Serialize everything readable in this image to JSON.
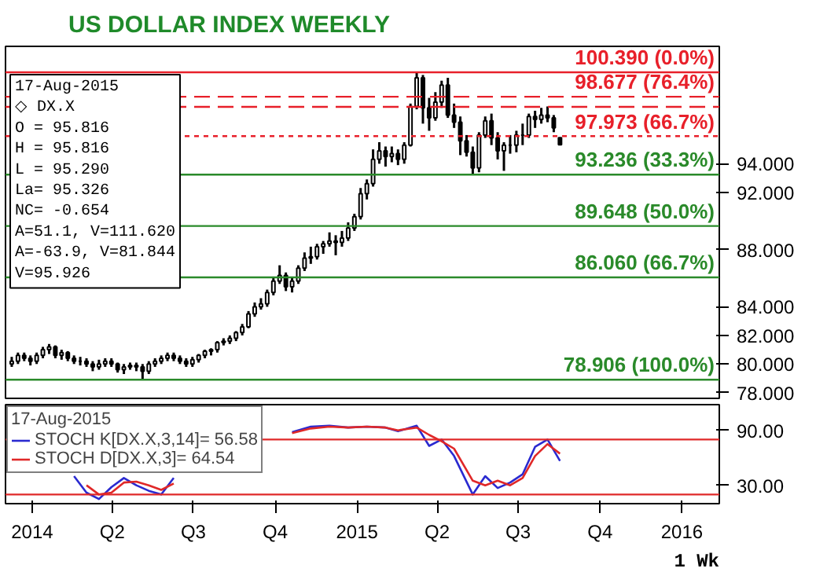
{
  "chart_data": [
    {
      "type": "candlestick",
      "title": "US DOLLAR INDEX WEEKLY",
      "x": [
        "2013-12-09",
        "2013-12-16",
        "2013-12-23",
        "2013-12-30",
        "2014-01-06",
        "2014-01-13",
        "2014-01-20",
        "2014-01-27",
        "2014-02-03",
        "2014-02-10",
        "2014-02-17",
        "2014-02-24",
        "2014-03-03",
        "2014-03-10",
        "2014-03-17",
        "2014-03-24",
        "2014-03-31",
        "2014-04-07",
        "2014-04-14",
        "2014-04-21",
        "2014-04-28",
        "2014-05-05",
        "2014-05-12",
        "2014-05-19",
        "2014-05-26",
        "2014-06-02",
        "2014-06-09",
        "2014-06-16",
        "2014-06-23",
        "2014-06-30",
        "2014-07-07",
        "2014-07-14",
        "2014-07-21",
        "2014-07-28",
        "2014-08-04",
        "2014-08-11",
        "2014-08-18",
        "2014-08-25",
        "2014-09-01",
        "2014-09-08",
        "2014-09-15",
        "2014-09-22",
        "2014-09-29",
        "2014-10-06",
        "2014-10-13",
        "2014-10-20",
        "2014-10-27",
        "2014-11-03",
        "2014-11-10",
        "2014-11-17",
        "2014-11-24",
        "2014-12-01",
        "2014-12-08",
        "2014-12-15",
        "2014-12-22",
        "2014-12-29",
        "2015-01-05",
        "2015-01-12",
        "2015-01-19",
        "2015-01-26",
        "2015-02-02",
        "2015-02-09",
        "2015-02-16",
        "2015-02-23",
        "2015-03-02",
        "2015-03-09",
        "2015-03-16",
        "2015-03-23",
        "2015-03-30",
        "2015-04-06",
        "2015-04-13",
        "2015-04-20",
        "2015-04-27",
        "2015-05-04",
        "2015-05-11",
        "2015-05-18",
        "2015-05-25",
        "2015-06-01",
        "2015-06-08",
        "2015-06-15",
        "2015-06-22",
        "2015-06-29",
        "2015-07-06",
        "2015-07-13",
        "2015-07-20",
        "2015-07-27",
        "2015-08-03",
        "2015-08-10",
        "2015-08-17"
      ],
      "ohlc": [
        [
          80.0,
          80.5,
          79.8,
          80.2
        ],
        [
          80.2,
          80.8,
          80.0,
          80.6
        ],
        [
          80.6,
          80.8,
          80.2,
          80.4
        ],
        [
          80.4,
          80.6,
          79.9,
          80.2
        ],
        [
          80.2,
          80.8,
          80.0,
          80.6
        ],
        [
          80.6,
          81.2,
          80.4,
          81.0
        ],
        [
          81.0,
          81.4,
          80.7,
          81.2
        ],
        [
          81.2,
          81.3,
          80.4,
          80.6
        ],
        [
          80.6,
          81.0,
          80.3,
          80.8
        ],
        [
          80.8,
          80.9,
          80.2,
          80.4
        ],
        [
          80.4,
          80.6,
          80.0,
          80.2
        ],
        [
          80.2,
          80.5,
          79.9,
          80.2
        ],
        [
          80.2,
          80.4,
          79.8,
          80.0
        ],
        [
          80.0,
          80.2,
          79.5,
          79.8
        ],
        [
          79.8,
          80.3,
          79.6,
          80.0
        ],
        [
          80.0,
          80.4,
          79.8,
          80.2
        ],
        [
          80.2,
          80.4,
          79.8,
          80.0
        ],
        [
          80.0,
          80.1,
          79.4,
          79.6
        ],
        [
          79.6,
          80.0,
          79.3,
          79.8
        ],
        [
          79.8,
          80.1,
          79.6,
          79.9
        ],
        [
          79.9,
          80.1,
          79.5,
          79.8
        ],
        [
          79.8,
          80.0,
          78.906,
          79.5
        ],
        [
          79.5,
          80.2,
          79.3,
          80.0
        ],
        [
          80.0,
          80.4,
          79.8,
          80.2
        ],
        [
          80.2,
          80.6,
          80.0,
          80.4
        ],
        [
          80.4,
          80.8,
          80.2,
          80.6
        ],
        [
          80.6,
          80.8,
          80.2,
          80.4
        ],
        [
          80.4,
          80.6,
          80.0,
          80.2
        ],
        [
          80.2,
          80.4,
          79.8,
          80.0
        ],
        [
          80.0,
          80.5,
          79.8,
          80.3
        ],
        [
          80.3,
          80.7,
          80.1,
          80.6
        ],
        [
          80.6,
          81.0,
          80.4,
          80.9
        ],
        [
          80.9,
          81.1,
          80.6,
          81.0
        ],
        [
          81.0,
          81.6,
          80.8,
          81.5
        ],
        [
          81.5,
          81.8,
          81.3,
          81.6
        ],
        [
          81.6,
          82.0,
          81.4,
          81.8
        ],
        [
          81.8,
          82.3,
          81.6,
          82.2
        ],
        [
          82.2,
          82.8,
          82.0,
          82.6
        ],
        [
          82.6,
          83.7,
          82.5,
          83.5
        ],
        [
          83.5,
          84.3,
          83.3,
          84.0
        ],
        [
          84.0,
          84.6,
          83.8,
          84.2
        ],
        [
          84.2,
          85.2,
          84.0,
          85.0
        ],
        [
          85.0,
          86.0,
          84.8,
          85.8
        ],
        [
          85.8,
          86.9,
          85.6,
          86.2
        ],
        [
          86.2,
          86.4,
          85.1,
          85.4
        ],
        [
          85.4,
          86.0,
          85.0,
          85.8
        ],
        [
          85.8,
          86.9,
          85.6,
          86.7
        ],
        [
          86.7,
          87.8,
          86.5,
          87.4
        ],
        [
          87.4,
          88.2,
          87.0,
          87.5
        ],
        [
          87.5,
          88.4,
          87.3,
          88.2
        ],
        [
          88.2,
          88.6,
          87.7,
          88.4
        ],
        [
          88.4,
          89.2,
          88.2,
          88.6
        ],
        [
          88.6,
          89.0,
          87.6,
          88.5
        ],
        [
          88.5,
          89.3,
          88.2,
          88.8
        ],
        [
          88.8,
          89.9,
          88.6,
          89.5
        ],
        [
          89.5,
          90.5,
          89.3,
          90.3
        ],
        [
          90.3,
          92.3,
          90.1,
          91.9
        ],
        [
          91.9,
          92.9,
          91.5,
          92.6
        ],
        [
          92.6,
          95.0,
          92.4,
          94.3
        ],
        [
          94.3,
          95.5,
          94.0,
          94.9
        ],
        [
          94.9,
          95.2,
          93.8,
          94.5
        ],
        [
          94.5,
          95.2,
          94.1,
          94.7
        ],
        [
          94.7,
          95.0,
          93.9,
          94.3
        ],
        [
          94.3,
          95.5,
          94.0,
          95.3
        ],
        [
          95.3,
          98.2,
          95.2,
          98.0
        ],
        [
          98.0,
          100.39,
          97.8,
          100.0
        ],
        [
          100.0,
          100.2,
          96.8,
          97.9
        ],
        [
          97.9,
          98.6,
          96.3,
          97.2
        ],
        [
          97.2,
          99.0,
          97.0,
          98.3
        ],
        [
          98.3,
          99.8,
          97.9,
          99.5
        ],
        [
          99.5,
          100.0,
          97.2,
          97.4
        ],
        [
          97.4,
          98.2,
          96.5,
          96.9
        ],
        [
          96.9,
          97.3,
          94.6,
          95.6
        ],
        [
          95.6,
          96.0,
          94.5,
          94.8
        ],
        [
          94.8,
          95.2,
          93.236,
          93.7
        ],
        [
          93.7,
          96.2,
          93.4,
          96.0
        ],
        [
          96.0,
          97.3,
          95.8,
          97.0
        ],
        [
          97.0,
          97.5,
          95.3,
          95.8
        ],
        [
          95.8,
          96.2,
          94.3,
          94.9
        ],
        [
          94.9,
          95.5,
          93.5,
          95.3
        ],
        [
          95.3,
          96.0,
          94.7,
          95.3
        ],
        [
          95.3,
          96.3,
          94.8,
          96.0
        ],
        [
          96.0,
          96.8,
          95.3,
          96.0
        ],
        [
          96.0,
          97.5,
          95.8,
          97.3
        ],
        [
          97.3,
          97.7,
          96.5,
          97.1
        ],
        [
          97.1,
          97.9,
          96.8,
          97.4
        ],
        [
          97.4,
          98.0,
          96.9,
          97.2
        ],
        [
          97.2,
          97.4,
          96.2,
          96.5
        ],
        [
          95.816,
          95.816,
          95.29,
          95.326
        ]
      ],
      "xlim": [
        "2013-12-02",
        "2016-02-12"
      ],
      "ylim": [
        77.6,
        102.2
      ],
      "yticks": [
        {
          "value": 78,
          "label": "78.000"
        },
        {
          "value": 80,
          "label": "80.000"
        },
        {
          "value": 82,
          "label": "82.000"
        },
        {
          "value": 84,
          "label": "84.000"
        },
        {
          "value": 88,
          "label": "88.000"
        },
        {
          "value": 92,
          "label": "92.000"
        },
        {
          "value": 94,
          "label": "94.000"
        }
      ],
      "tick_labels": "y",
      "grid": false,
      "ref_lines": [
        {
          "axis": "y",
          "value": 100.39,
          "label": "100.390 (0.0%)",
          "color": "#e8202a",
          "line_style": "solid"
        },
        {
          "axis": "y",
          "value": 98.677,
          "label": "98.677 (76.4%)",
          "color": "#e8202a",
          "line_style": "dashed"
        },
        {
          "axis": "y",
          "value": 97.973,
          "label": "97.973 (66.7%)",
          "color": "#e8202a",
          "line_style": "dashed"
        },
        {
          "axis": "y",
          "value": 95.926,
          "label": null,
          "color": "#e8202a",
          "line_style": "dotted"
        },
        {
          "axis": "y",
          "value": 93.236,
          "label": "93.236 (33.3%)",
          "color": "#2a8a2a",
          "line_style": "solid"
        },
        {
          "axis": "y",
          "value": 89.648,
          "label": "89.648 (50.0%)",
          "color": "#2a8a2a",
          "line_style": "solid"
        },
        {
          "axis": "y",
          "value": 86.06,
          "label": "86.060 (66.7%)",
          "color": "#2a8a2a",
          "line_style": "solid"
        },
        {
          "axis": "y",
          "value": 78.906,
          "label": "78.906 (100.0%)",
          "color": "#2a8a2a",
          "line_style": "solid"
        }
      ],
      "annotations": [
        "17-Aug-2015",
        "◇ DX.X",
        "O = 95.816",
        "H = 95.816",
        "L = 95.290",
        "La= 95.326",
        "NC= -0.654",
        "A=51.1, V=111.620",
        "A=-63.9, V=81.844",
        "V=95.926"
      ]
    },
    {
      "type": "line",
      "x": [
        "2014-02-17",
        "2014-03-03",
        "2014-03-17",
        "2014-03-31",
        "2014-04-14",
        "2014-04-28",
        "2014-05-12",
        "2014-05-26",
        "2014-06-09",
        "2014-06-23",
        "2014-10-06",
        "2014-10-20",
        "2014-11-10",
        "2014-12-01",
        "2014-12-22",
        "2015-01-12",
        "2015-02-02",
        "2015-02-16",
        "2015-03-09",
        "2015-03-23",
        "2015-04-06",
        "2015-04-20",
        "2015-05-11",
        "2015-05-25",
        "2015-06-08",
        "2015-06-22",
        "2015-07-06",
        "2015-07-20",
        "2015-08-03",
        "2015-08-17"
      ],
      "series": [
        {
          "name": "STOCH K[DX.X,3,14]= 56.58",
          "color": "#2a2ad0",
          "values": [
            40,
            22,
            15,
            28,
            38,
            30,
            24,
            20,
            38,
            null,
            null,
            88,
            94,
            95,
            93,
            94,
            93,
            89,
            95,
            73,
            80,
            62,
            20,
            40,
            27,
            33,
            42,
            72,
            80,
            56.58
          ]
        },
        {
          "name": "STOCH D[DX.X,3]= 64.54",
          "color": "#e02828",
          "values": [
            null,
            30,
            20,
            22,
            33,
            34,
            30,
            25,
            32,
            null,
            null,
            87,
            92,
            94,
            93,
            94,
            93,
            90,
            93,
            85,
            78,
            70,
            35,
            30,
            35,
            30,
            38,
            62,
            75,
            64.54
          ]
        }
      ],
      "legend": "top left",
      "legend_title": "17-Aug-2015",
      "xlim": [
        "2013-12-02",
        "2016-02-12"
      ],
      "ylim": [
        10,
        118
      ],
      "xticks": [
        {
          "value": "2014-01-01",
          "label": "2014"
        },
        {
          "value": "2014-04-01",
          "label": "Q2"
        },
        {
          "value": "2014-07-01",
          "label": "Q3"
        },
        {
          "value": "2014-10-01",
          "label": "Q4"
        },
        {
          "value": "2015-01-01",
          "label": "2015"
        },
        {
          "value": "2015-04-01",
          "label": "Q2"
        },
        {
          "value": "2015-07-01",
          "label": "Q3"
        },
        {
          "value": "2015-10-01",
          "label": "Q4"
        },
        {
          "value": "2016-01-01",
          "label": "2016"
        }
      ],
      "yticks": [
        {
          "value": 30,
          "label": "30.00"
        },
        {
          "value": 90,
          "label": "90.00"
        }
      ],
      "grid": false,
      "ref_lines": [
        {
          "axis": "y",
          "value": 80,
          "label": null,
          "color": "#e02828",
          "line_style": "solid"
        },
        {
          "axis": "y",
          "value": 20,
          "label": null,
          "color": "#e02828",
          "line_style": "solid"
        }
      ],
      "annotations": [
        "1 Wk"
      ]
    }
  ]
}
